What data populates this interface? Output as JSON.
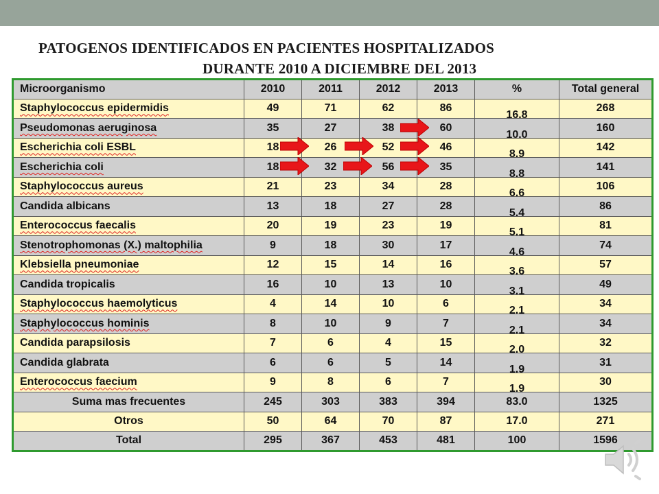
{
  "title_line1": "PATOGENOS IDENTIFICADOS  EN PACIENTES HOSPITALIZADOS",
  "title_line2": "DURANTE 2010 A DICIEMBRE DEL 2013",
  "colors": {
    "topbar": "#97a49a",
    "border": "#2f9a2f",
    "arrow": "#e8161a",
    "row_gray": "#cfcfcf",
    "row_yellow": "#fff8c6"
  },
  "table": {
    "headers": [
      "Microorganismo",
      "2010",
      "2011",
      "2012",
      "2013",
      "%",
      "Total general"
    ],
    "rows": [
      {
        "name": "Staphylococcus  epidermidis",
        "v2010": "49",
        "v2011": "71",
        "v2012": "62",
        "v2013": "86",
        "pct": "16.8",
        "total": "268"
      },
      {
        "name": "Pseudomonas  aeruginosa",
        "v2010": "35",
        "v2011": "27",
        "v2012": "38",
        "v2013": "60",
        "pct": "10.0",
        "total": "160"
      },
      {
        "name": "Escherichia  coli ESBL",
        "v2010": "18",
        "v2011": "26",
        "v2012": "52",
        "v2013": "46",
        "pct": "8.9",
        "total": "142"
      },
      {
        "name": "Escherichia  coli",
        "v2010": "18",
        "v2011": "32",
        "v2012": "56",
        "v2013": "35",
        "pct": "8.8",
        "total": "141"
      },
      {
        "name": "Staphylococcus  aureus",
        "v2010": "21",
        "v2011": "23",
        "v2012": "34",
        "v2013": "28",
        "pct": "6.6",
        "total": "106"
      },
      {
        "name": "Candida albicans",
        "v2010": "13",
        "v2011": "18",
        "v2012": "27",
        "v2013": "28",
        "pct": "5.4",
        "total": "86"
      },
      {
        "name": "Enterococcus  faecalis",
        "v2010": "20",
        "v2011": "19",
        "v2012": "23",
        "v2013": "19",
        "pct": "5.1",
        "total": "81"
      },
      {
        "name": "Stenotrophomonas  (X.) maltophilia",
        "v2010": "9",
        "v2011": "18",
        "v2012": "30",
        "v2013": "17",
        "pct": "4.6",
        "total": "74"
      },
      {
        "name": "Klebsiella  pneumoniae",
        "v2010": "12",
        "v2011": "15",
        "v2012": "14",
        "v2013": "16",
        "pct": "3.6",
        "total": "57"
      },
      {
        "name": "Candida tropicalis",
        "v2010": "16",
        "v2011": "10",
        "v2012": "13",
        "v2013": "10",
        "pct": "3.1",
        "total": "49"
      },
      {
        "name": "Staphylococcus  haemolyticus",
        "v2010": "4",
        "v2011": "14",
        "v2012": "10",
        "v2013": "6",
        "pct": "2.1",
        "total": "34"
      },
      {
        "name": "Staphylococcus  hominis",
        "v2010": "8",
        "v2011": "10",
        "v2012": "9",
        "v2013": "7",
        "pct": "2.1",
        "total": "34"
      },
      {
        "name": "Candida parapsilosis",
        "v2010": "7",
        "v2011": "6",
        "v2012": "4",
        "v2013": "15",
        "pct": "2.0",
        "total": "32"
      },
      {
        "name": "Candida glabrata",
        "v2010": "6",
        "v2011": "6",
        "v2012": "5",
        "v2013": "14",
        "pct": "1.9",
        "total": "31"
      },
      {
        "name": "Enterococcus  faecium",
        "v2010": "9",
        "v2011": "8",
        "v2012": "6",
        "v2013": "7",
        "pct": "1.9",
        "total": "30"
      }
    ],
    "summary": [
      {
        "name": "Suma mas frecuentes",
        "v2010": "245",
        "v2011": "303",
        "v2012": "383",
        "v2013": "394",
        "pct": "83.0",
        "total": "1325"
      },
      {
        "name": "Otros",
        "v2010": "50",
        "v2011": "64",
        "v2012": "70",
        "v2013": "87",
        "pct": "17.0",
        "total": "271"
      },
      {
        "name": "Total",
        "v2010": "295",
        "v2011": "367",
        "v2012": "453",
        "v2013": "481",
        "pct": "100",
        "total": "1596"
      }
    ]
  },
  "speaker_icon": "speaker-audio-icon",
  "arrow_icon": "right-arrow-icon"
}
